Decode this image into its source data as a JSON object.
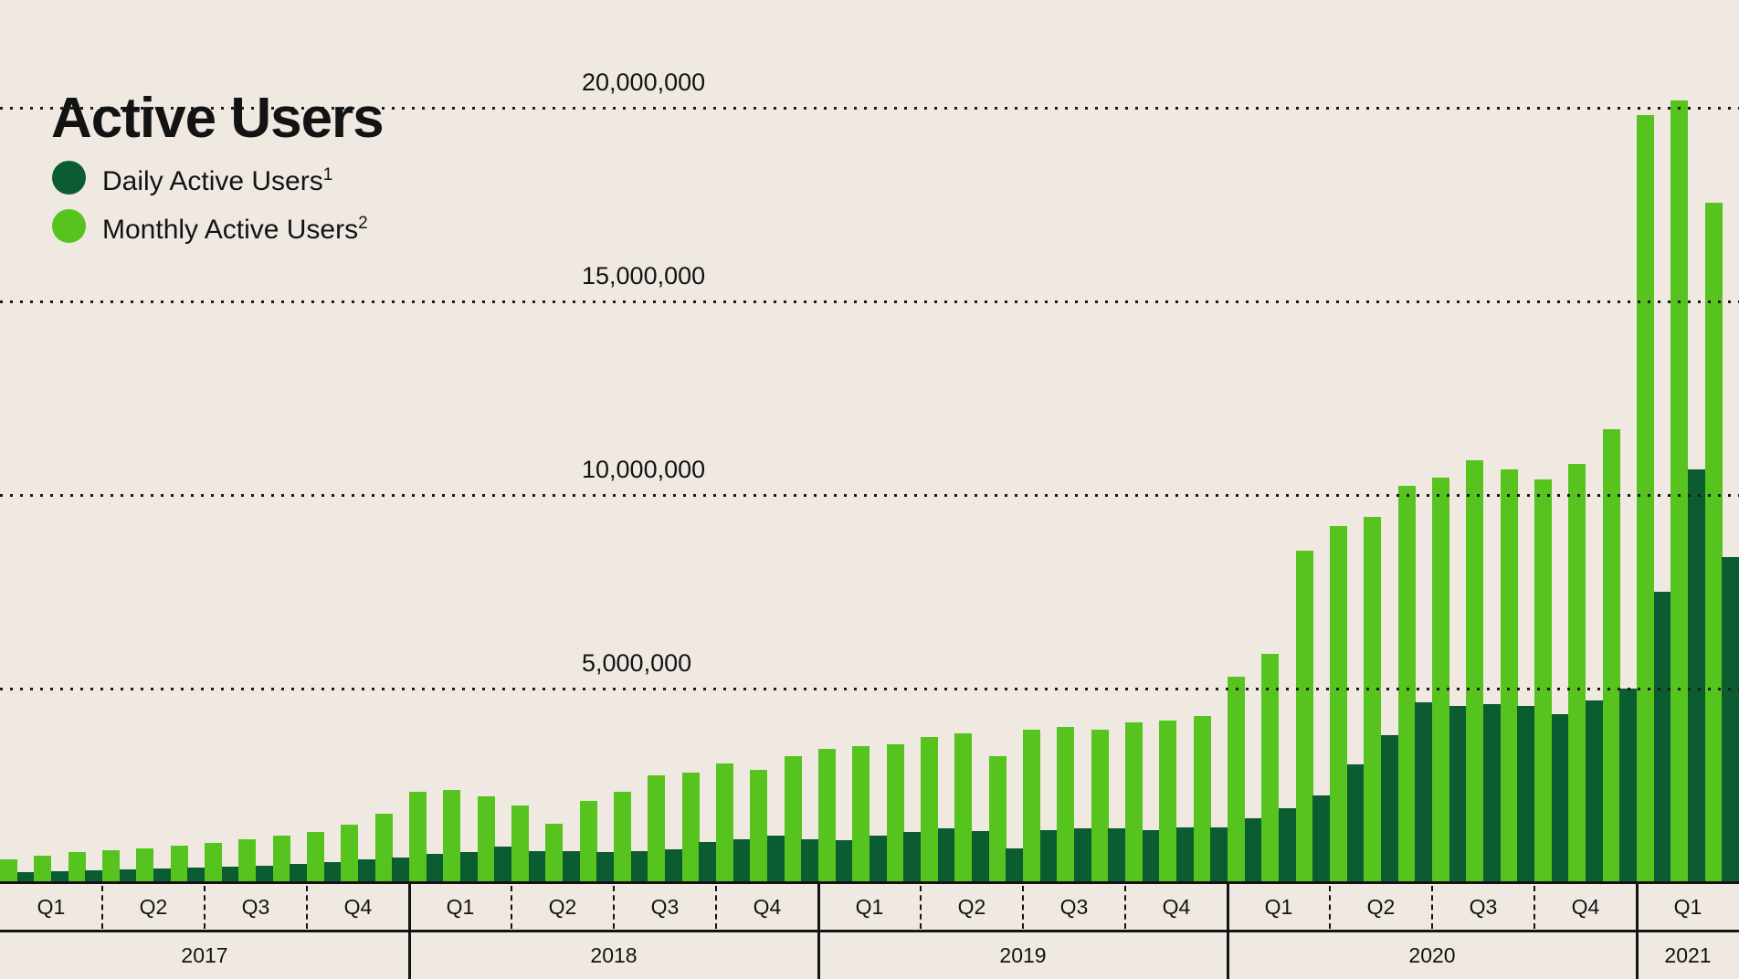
{
  "title": "Active Users",
  "legend": {
    "items": [
      {
        "label": "Daily Active Users",
        "footnote": "1",
        "color": "#0B5C30",
        "series": "dau"
      },
      {
        "label": "Monthly Active Users",
        "footnote": "2",
        "color": "#57C31E",
        "series": "mau"
      }
    ]
  },
  "y_axis": {
    "ticks": [
      {
        "label": "20,000,000",
        "value": 20000000
      },
      {
        "label": "15,000,000",
        "value": 15000000
      },
      {
        "label": "10,000,000",
        "value": 10000000
      },
      {
        "label": "5,000,000",
        "value": 5000000
      }
    ]
  },
  "x_axis": {
    "years": [
      {
        "label": "2017",
        "quarters": [
          "Q1",
          "Q2",
          "Q3",
          "Q4"
        ]
      },
      {
        "label": "2018",
        "quarters": [
          "Q1",
          "Q2",
          "Q3",
          "Q4"
        ]
      },
      {
        "label": "2019",
        "quarters": [
          "Q1",
          "Q2",
          "Q3",
          "Q4"
        ]
      },
      {
        "label": "2020",
        "quarters": [
          "Q1",
          "Q2",
          "Q3",
          "Q4"
        ]
      },
      {
        "label": "2021",
        "quarters": [
          "Q1"
        ]
      }
    ]
  },
  "chart_data": {
    "type": "bar",
    "title": "Active Users",
    "x_unit": "month",
    "x": [
      "2017-01",
      "2017-02",
      "2017-03",
      "2017-04",
      "2017-05",
      "2017-06",
      "2017-07",
      "2017-08",
      "2017-09",
      "2017-10",
      "2017-11",
      "2017-12",
      "2018-01",
      "2018-02",
      "2018-03",
      "2018-04",
      "2018-05",
      "2018-06",
      "2018-07",
      "2018-08",
      "2018-09",
      "2018-10",
      "2018-11",
      "2018-12",
      "2019-01",
      "2019-02",
      "2019-03",
      "2019-04",
      "2019-05",
      "2019-06",
      "2019-07",
      "2019-08",
      "2019-09",
      "2019-10",
      "2019-11",
      "2019-12",
      "2020-01",
      "2020-02",
      "2020-03",
      "2020-04",
      "2020-05",
      "2020-06",
      "2020-07",
      "2020-08",
      "2020-09",
      "2020-10",
      "2020-11",
      "2020-12",
      "2021-01",
      "2021-02",
      "2021-03"
    ],
    "series": [
      {
        "name": "Monthly Active Users",
        "color": "#57C31E",
        "values": [
          600000,
          680000,
          770000,
          820000,
          870000,
          940000,
          1010000,
          1100000,
          1200000,
          1290000,
          1490000,
          1780000,
          2330000,
          2380000,
          2210000,
          1970000,
          1500000,
          2110000,
          2330000,
          2760000,
          2840000,
          3070000,
          2900000,
          3250000,
          3440000,
          3520000,
          3550000,
          3760000,
          3840000,
          3250000,
          3940000,
          4000000,
          3940000,
          4130000,
          4170000,
          4300000,
          5300000,
          5900000,
          8550000,
          9200000,
          9430000,
          10230000,
          10450000,
          10900000,
          10650000,
          10400000,
          10800000,
          11700000,
          19800000,
          20200000,
          17550000
        ]
      },
      {
        "name": "Daily Active Users",
        "color": "#0B5C30",
        "values": [
          260000,
          280000,
          300000,
          330000,
          350000,
          380000,
          400000,
          430000,
          470000,
          520000,
          580000,
          640000,
          720000,
          770000,
          910000,
          810000,
          800000,
          780000,
          800000,
          850000,
          1030000,
          1110000,
          1210000,
          1110000,
          1080000,
          1200000,
          1300000,
          1400000,
          1320000,
          870000,
          1340000,
          1380000,
          1380000,
          1340000,
          1410000,
          1410000,
          1650000,
          1900000,
          2250000,
          3050000,
          3800000,
          4650000,
          4550000,
          4600000,
          4550000,
          4350000,
          4700000,
          5000000,
          7500000,
          10650000,
          8400000
        ]
      }
    ],
    "ylim": [
      0,
      21200000
    ],
    "grid_values": [
      5000000,
      10000000,
      15000000,
      20000000
    ],
    "grid_style": "dotted",
    "legend_position": "top-left",
    "bar_order_within_month": [
      "Monthly Active Users",
      "Daily Active Users"
    ]
  },
  "colors": {
    "background": "#EFE9E2",
    "mau": "#57C31E",
    "dau": "#0B5C30",
    "text": "#131313",
    "axis_line": "#141414"
  }
}
